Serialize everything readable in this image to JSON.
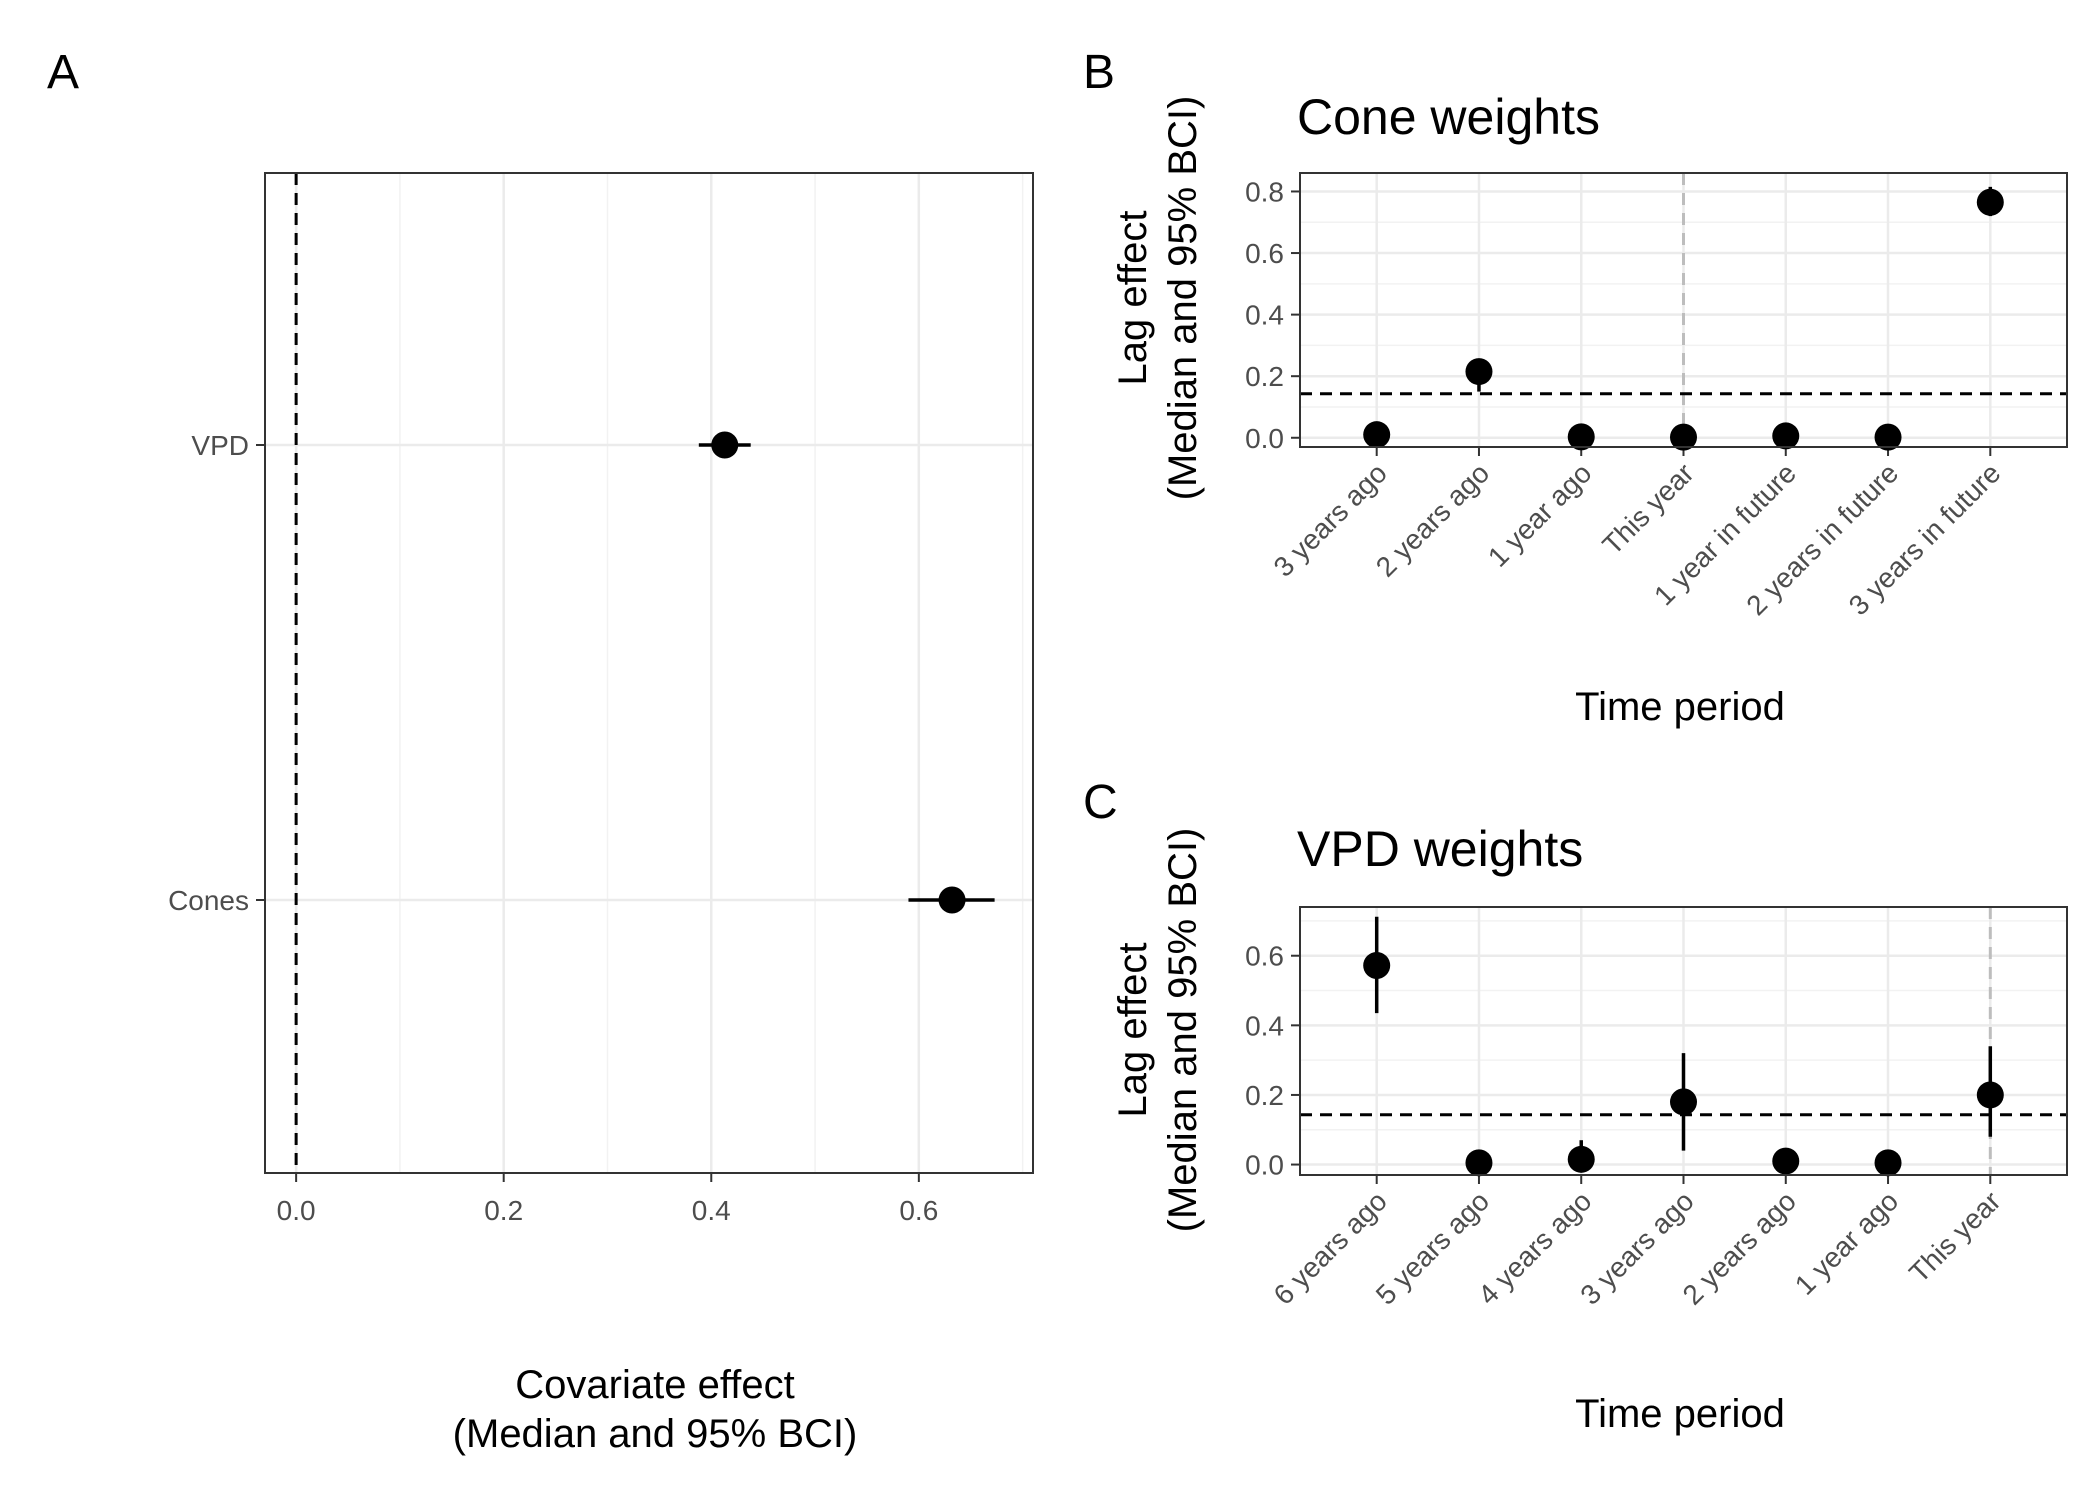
{
  "chart_data": [
    {
      "panel": "A",
      "type": "scatter",
      "title": "",
      "xlabel": [
        "Covariate effect",
        "(Median and 95% BCI)"
      ],
      "ylabel": "",
      "xlim": [
        -0.03,
        0.71
      ],
      "x_ticks": [
        "0.0",
        "0.2",
        "0.4",
        "0.6"
      ],
      "categories": [
        "VPD",
        "Cones"
      ],
      "points": [
        {
          "category": "VPD",
          "median": 0.413,
          "lower": 0.388,
          "upper": 0.438
        },
        {
          "category": "Cones",
          "median": 0.632,
          "lower": 0.59,
          "upper": 0.673
        }
      ],
      "reference_line": {
        "x": 0.0,
        "style": "dashed"
      },
      "grid": true
    },
    {
      "panel": "B",
      "type": "scatter",
      "title": "Cone weights",
      "xlabel": "Time period",
      "ylabel": [
        "Lag effect",
        "(Median and 95% BCI)"
      ],
      "ylim": [
        -0.03,
        0.86
      ],
      "y_ticks": [
        "0.0",
        "0.2",
        "0.4",
        "0.6",
        "0.8"
      ],
      "categories": [
        "3 years ago",
        "2 years ago",
        "1 year ago",
        "This year",
        "1 year in future",
        "2 years in future",
        "3 years in future"
      ],
      "points": [
        {
          "category": "3 years ago",
          "median": 0.01,
          "lower": 0.002,
          "upper": 0.02
        },
        {
          "category": "2 years ago",
          "median": 0.215,
          "lower": 0.15,
          "upper": 0.25
        },
        {
          "category": "1 year ago",
          "median": 0.003,
          "lower": 0.0,
          "upper": 0.01
        },
        {
          "category": "This year",
          "median": 0.002,
          "lower": 0.0,
          "upper": 0.008
        },
        {
          "category": "1 year in future",
          "median": 0.006,
          "lower": 0.0,
          "upper": 0.015
        },
        {
          "category": "2 years in future",
          "median": 0.002,
          "lower": 0.0,
          "upper": 0.008
        },
        {
          "category": "3 years in future",
          "median": 0.765,
          "lower": 0.72,
          "upper": 0.815
        }
      ],
      "reference_line": {
        "y": 0.143,
        "style": "dashed"
      },
      "vertical_marker": {
        "category": "This year",
        "style": "dashed-grey"
      },
      "grid": true
    },
    {
      "panel": "C",
      "type": "scatter",
      "title": "VPD weights",
      "xlabel": "Time period",
      "ylabel": [
        "Lag effect",
        "(Median and 95% BCI)"
      ],
      "ylim": [
        -0.03,
        0.74
      ],
      "y_ticks": [
        "0.0",
        "0.2",
        "0.4",
        "0.6"
      ],
      "categories": [
        "6 years ago",
        "5 years ago",
        "4 years ago",
        "3 years ago",
        "2 years ago",
        "1 year ago",
        "This year"
      ],
      "points": [
        {
          "category": "6 years ago",
          "median": 0.572,
          "lower": 0.435,
          "upper": 0.712
        },
        {
          "category": "5 years ago",
          "median": 0.005,
          "lower": 0.0,
          "upper": 0.015
        },
        {
          "category": "4 years ago",
          "median": 0.015,
          "lower": 0.0,
          "upper": 0.07
        },
        {
          "category": "3 years ago",
          "median": 0.18,
          "lower": 0.04,
          "upper": 0.32
        },
        {
          "category": "2 years ago",
          "median": 0.01,
          "lower": 0.0,
          "upper": 0.02
        },
        {
          "category": "1 year ago",
          "median": 0.005,
          "lower": 0.0,
          "upper": 0.012
        },
        {
          "category": "This year",
          "median": 0.2,
          "lower": 0.08,
          "upper": 0.34
        }
      ],
      "reference_line": {
        "y": 0.143,
        "style": "dashed"
      },
      "vertical_marker": {
        "category": "This year",
        "style": "dashed-grey"
      },
      "grid": true
    }
  ]
}
